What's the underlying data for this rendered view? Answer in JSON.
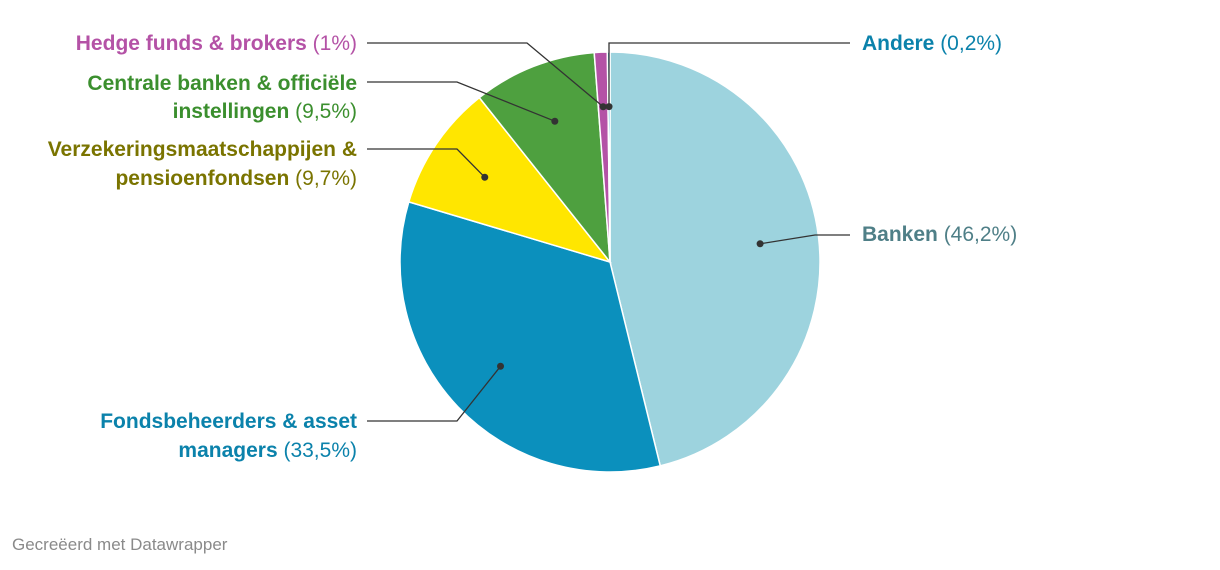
{
  "chart_data": {
    "type": "pie",
    "title": "",
    "slices": [
      {
        "label": "Banken",
        "value": 46.2,
        "value_label": "(46,2%)",
        "color": "#9dd3de",
        "text_color": "#4f7f87",
        "name_color": "#4f7f87"
      },
      {
        "label": "Fondsbeheerders & asset managers",
        "lines": [
          "Fondsbeheerders & asset",
          "managers"
        ],
        "value": 33.5,
        "value_label": "(33,5%)",
        "color": "#0b90bd",
        "text_color": "#0b82ab",
        "name_color": "#0b82ab"
      },
      {
        "label": "Verzekeringsmaatschappijen & pensioenfondsen",
        "lines": [
          "Verzekeringsmaatschappijen &",
          "pensioenfondsen"
        ],
        "value": 9.7,
        "value_label": "(9,7%)",
        "color": "#ffe600",
        "text_color": "#7a7400",
        "name_color": "#7a7400"
      },
      {
        "label": "Centrale banken & officiële instellingen",
        "lines": [
          "Centrale banken & officiële",
          "instellingen"
        ],
        "value": 9.5,
        "value_label": "(9,5%)",
        "color": "#4ea03f",
        "text_color": "#3b8f2e",
        "name_color": "#3b8f2e"
      },
      {
        "label": "Hedge funds & brokers",
        "lines": [
          "Hedge funds & brokers"
        ],
        "value": 1.0,
        "value_label": "(1%)",
        "color": "#b452a6",
        "text_color": "#b452a6",
        "name_color": "#b452a6"
      },
      {
        "label": "Andere",
        "lines": [
          "Andere"
        ],
        "value": 0.2,
        "value_label": "(0,2%)",
        "color": "#0b90bd",
        "text_color": "#0b82ab",
        "name_color": "#0b82ab"
      }
    ]
  },
  "credit": "Gecreëerd met Datawrapper"
}
